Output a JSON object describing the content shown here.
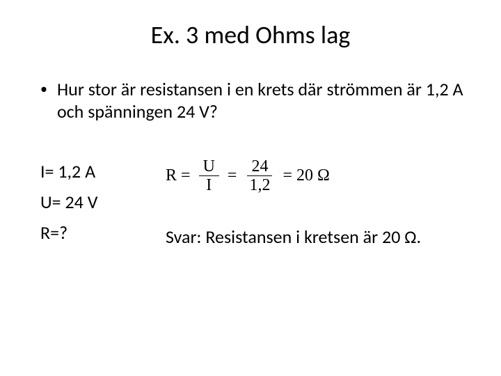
{
  "title": "Ex. 3 med Ohms lag",
  "bullet": "Hur stor är resistansen i en krets där strömmen är 1,2 A och spänningen 24 V?",
  "givens": {
    "line1": "I= 1,2 A",
    "line2": "U= 24 V",
    "line3": "R=?"
  },
  "formula": {
    "lhs": "R",
    "frac1_num": "U",
    "frac1_den": "I",
    "frac2_num": "24",
    "frac2_den": "1,2",
    "result": "20 Ω",
    "font_family": "Times New Roman",
    "font_size_pt": 18
  },
  "answer": "Svar: Resistansen i kretsen är 20 Ω.",
  "colors": {
    "background": "#ffffff",
    "text": "#000000"
  },
  "typography": {
    "title_fontsize": 36,
    "body_fontsize": 26,
    "font_family": "Calibri"
  }
}
